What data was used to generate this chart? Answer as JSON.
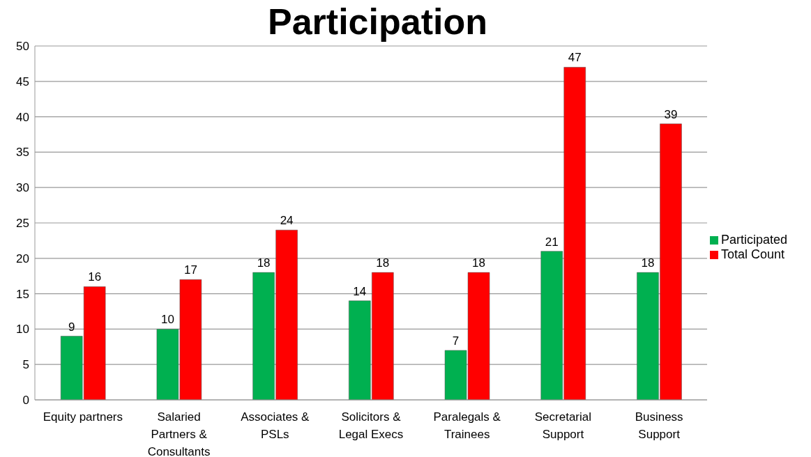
{
  "chart_data": {
    "type": "bar",
    "title": "Participation",
    "categories": [
      "Equity partners",
      "Salaried Partners & Consultants",
      "Associates & PSLs",
      "Solicitors & Legal Execs",
      "Paralegals & Trainees",
      "Secretarial Support",
      "Business Support"
    ],
    "series": [
      {
        "name": "Participated",
        "color": "#00b050",
        "values": [
          9,
          10,
          18,
          14,
          7,
          21,
          18
        ]
      },
      {
        "name": "Total Count",
        "color": "#ff0000",
        "values": [
          16,
          17,
          24,
          18,
          18,
          47,
          39
        ]
      }
    ],
    "ylim": [
      0,
      50
    ],
    "yticks": [
      0,
      5,
      10,
      15,
      20,
      25,
      30,
      35,
      40,
      45,
      50
    ],
    "grid": "y",
    "legend": "right",
    "data_labels": true
  }
}
